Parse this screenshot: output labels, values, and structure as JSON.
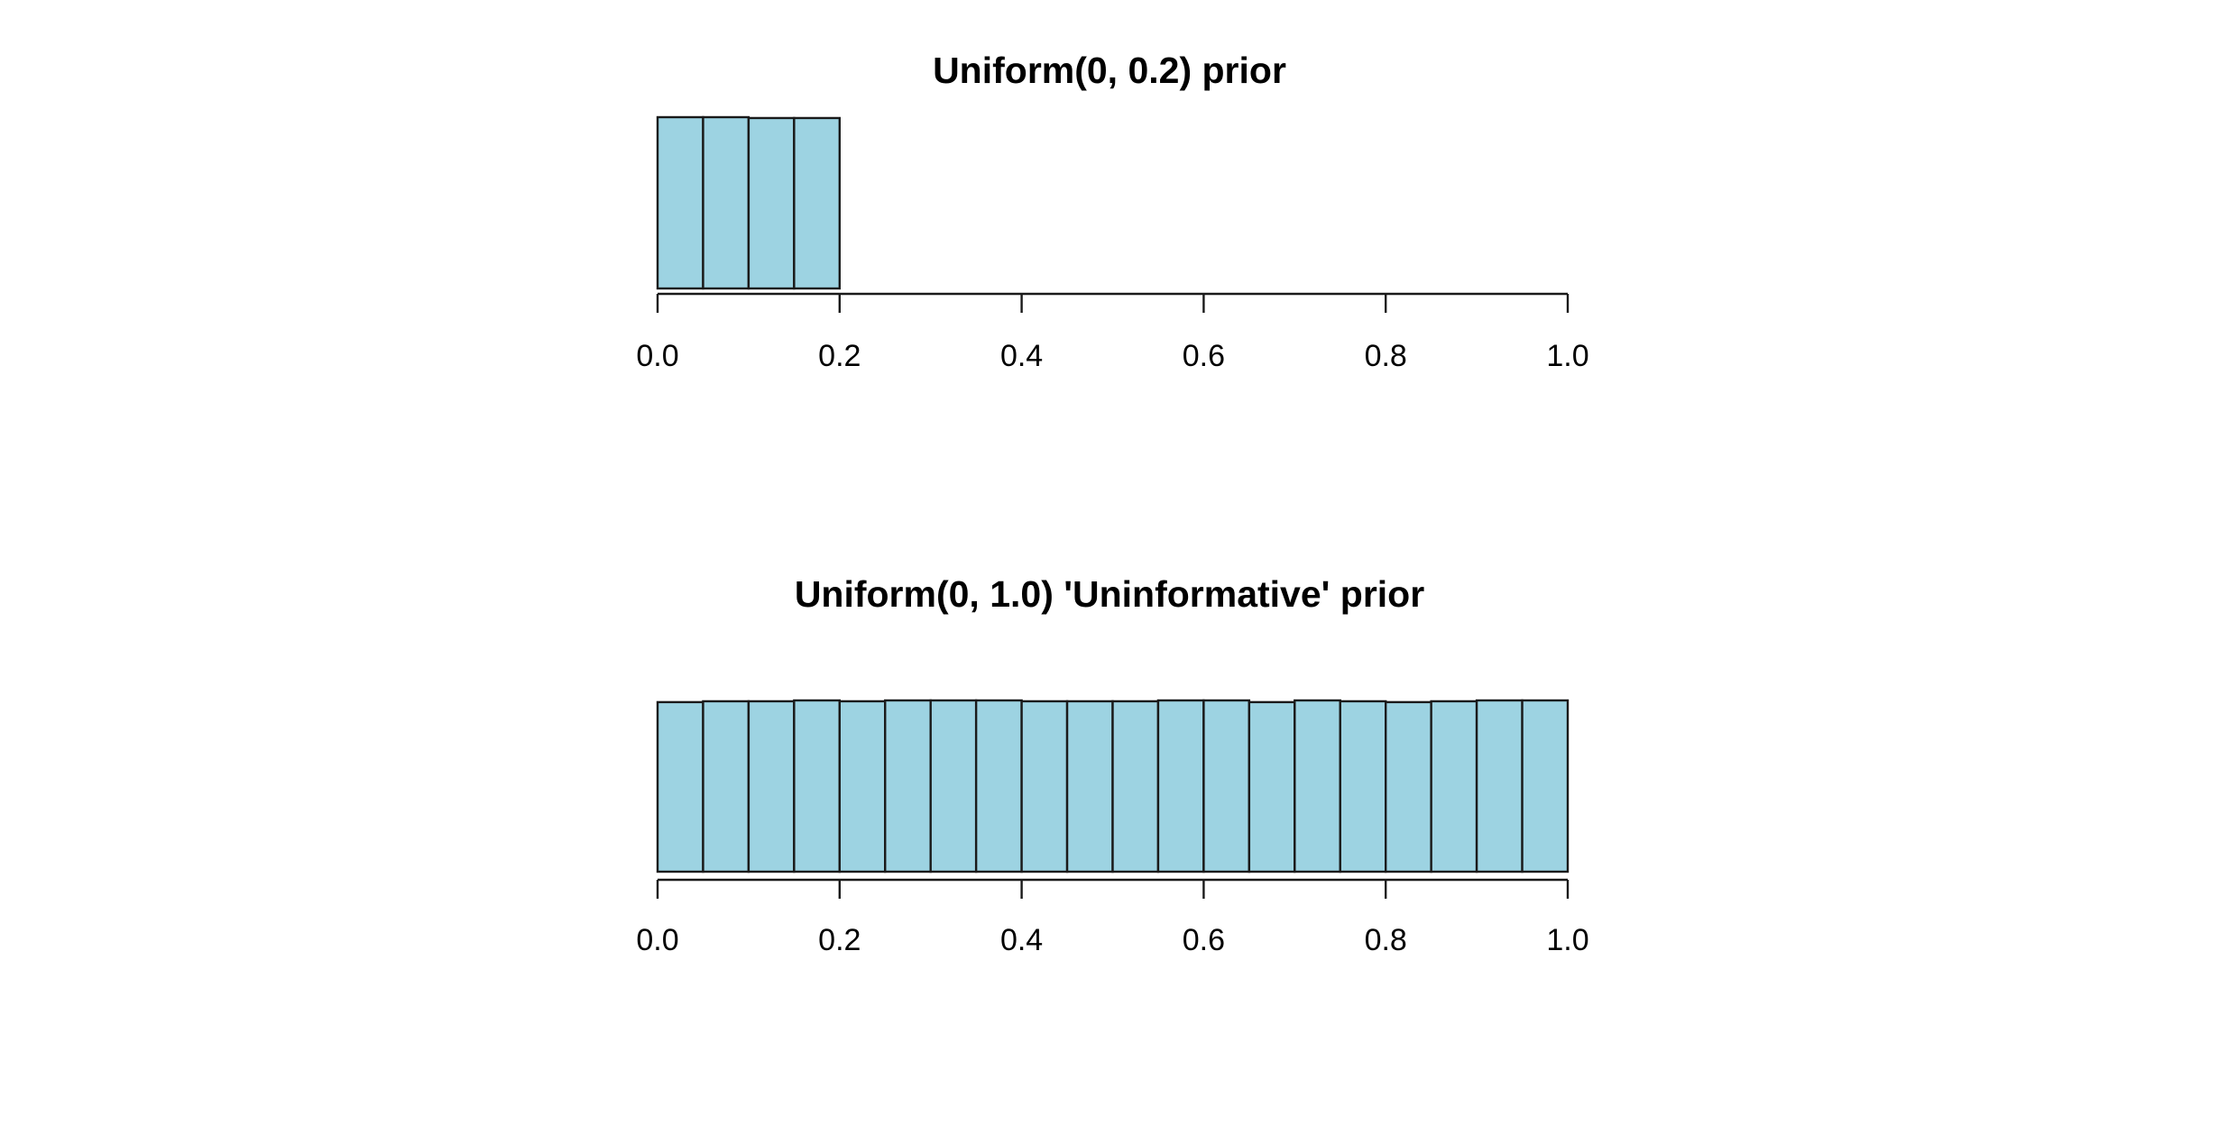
{
  "chart_data": [
    {
      "type": "bar",
      "title": "Uniform(0, 0.2) prior",
      "xlabel": "",
      "ylabel": "",
      "bin_width": 0.05,
      "bin_edges": [
        0.0,
        0.05,
        0.1,
        0.15,
        0.2,
        0.25,
        0.3,
        0.35,
        0.4,
        0.45,
        0.5,
        0.55,
        0.6,
        0.65,
        0.7,
        0.75,
        0.8,
        0.85,
        0.9,
        0.95,
        1.0
      ],
      "values": [
        1.0,
        1.0,
        0.995,
        0.995,
        0,
        0,
        0,
        0,
        0,
        0,
        0,
        0,
        0,
        0,
        0,
        0,
        0,
        0,
        0,
        0
      ],
      "xlim": [
        0.0,
        1.0
      ],
      "x_ticks": [
        0.0,
        0.2,
        0.4,
        0.6,
        0.8,
        1.0
      ],
      "x_tick_labels": [
        "0.0",
        "0.2",
        "0.4",
        "0.6",
        "0.8",
        "1.0"
      ],
      "y_axis_shown": false,
      "grid": false,
      "legend": "none",
      "bar_color": "#9dd3e2",
      "edge_color": "#1a1a1a"
    },
    {
      "type": "bar",
      "title": "Uniform(0, 1.0) 'Uninformative' prior",
      "xlabel": "",
      "ylabel": "",
      "bin_width": 0.05,
      "bin_edges": [
        0.0,
        0.05,
        0.1,
        0.15,
        0.2,
        0.25,
        0.3,
        0.35,
        0.4,
        0.45,
        0.5,
        0.55,
        0.6,
        0.65,
        0.7,
        0.75,
        0.8,
        0.85,
        0.9,
        0.95,
        1.0
      ],
      "values": [
        0.99,
        0.995,
        0.995,
        1.0,
        0.995,
        1.0,
        1.0,
        1.0,
        0.995,
        0.995,
        0.995,
        1.0,
        1.0,
        0.99,
        1.0,
        0.995,
        0.99,
        0.995,
        1.0,
        1.0
      ],
      "xlim": [
        0.0,
        1.0
      ],
      "x_ticks": [
        0.0,
        0.2,
        0.4,
        0.6,
        0.8,
        1.0
      ],
      "x_tick_labels": [
        "0.0",
        "0.2",
        "0.4",
        "0.6",
        "0.8",
        "1.0"
      ],
      "y_axis_shown": false,
      "grid": false,
      "legend": "none",
      "bar_color": "#9dd3e2",
      "edge_color": "#1a1a1a"
    }
  ]
}
